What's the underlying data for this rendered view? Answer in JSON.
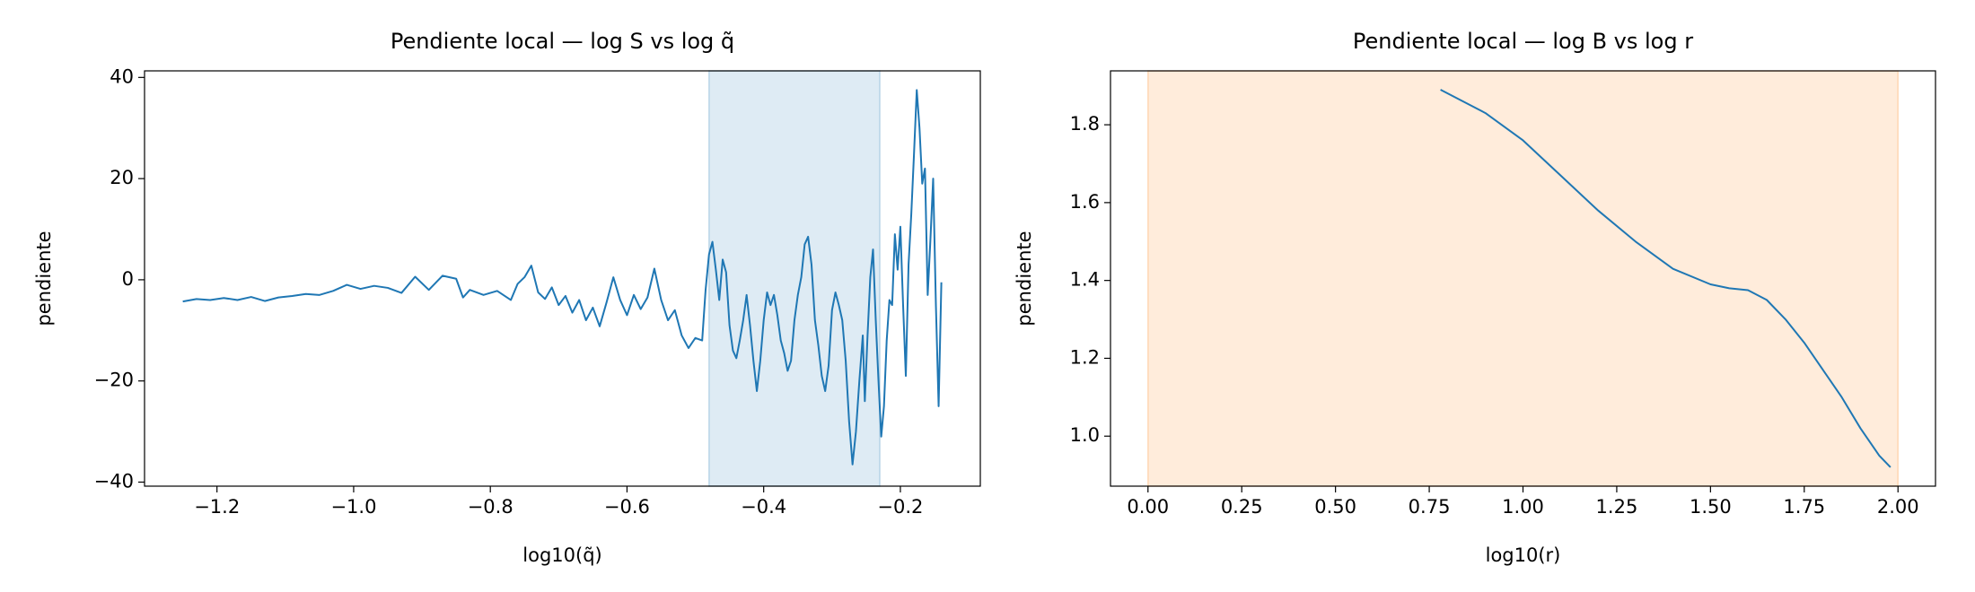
{
  "chart_data": [
    {
      "type": "line",
      "title": "Pendiente local — log S vs log q̃",
      "xlabel": "log10(q̃)",
      "ylabel": "pendiente",
      "xlim": [
        -1.306,
        -0.083
      ],
      "ylim": [
        -40.8,
        41.3
      ],
      "xticks": [
        {
          "value": -1.2,
          "label": "−1.2"
        },
        {
          "value": -1.0,
          "label": "−1.0"
        },
        {
          "value": -0.8,
          "label": "−0.8"
        },
        {
          "value": -0.6,
          "label": "−0.6"
        },
        {
          "value": -0.4,
          "label": "−0.4"
        },
        {
          "value": -0.2,
          "label": "−0.2"
        }
      ],
      "yticks": [
        {
          "value": -40,
          "label": "−40"
        },
        {
          "value": -20,
          "label": "−20"
        },
        0,
        20,
        40
      ],
      "span": [
        -0.48,
        -0.23
      ],
      "span_color": "#1f77b4",
      "series": [
        {
          "color": "#1f77b4",
          "x": [
            -1.25,
            -1.23,
            -1.21,
            -1.19,
            -1.17,
            -1.15,
            -1.13,
            -1.11,
            -1.09,
            -1.07,
            -1.05,
            -1.03,
            -1.01,
            -0.99,
            -0.97,
            -0.95,
            -0.93,
            -0.91,
            -0.89,
            -0.87,
            -0.85,
            -0.84,
            -0.83,
            -0.81,
            -0.79,
            -0.77,
            -0.76,
            -0.75,
            -0.74,
            -0.73,
            -0.72,
            -0.71,
            -0.7,
            -0.69,
            -0.68,
            -0.67,
            -0.66,
            -0.65,
            -0.64,
            -0.63,
            -0.62,
            -0.61,
            -0.6,
            -0.59,
            -0.58,
            -0.57,
            -0.56,
            -0.55,
            -0.54,
            -0.53,
            -0.52,
            -0.51,
            -0.5,
            -0.49,
            -0.485,
            -0.48,
            -0.475,
            -0.47,
            -0.465,
            -0.46,
            -0.455,
            -0.45,
            -0.445,
            -0.44,
            -0.435,
            -0.43,
            -0.425,
            -0.42,
            -0.415,
            -0.41,
            -0.405,
            -0.4,
            -0.395,
            -0.39,
            -0.385,
            -0.38,
            -0.375,
            -0.37,
            -0.365,
            -0.36,
            -0.355,
            -0.35,
            -0.345,
            -0.34,
            -0.335,
            -0.33,
            -0.325,
            -0.32,
            -0.315,
            -0.31,
            -0.305,
            -0.3,
            -0.295,
            -0.29,
            -0.285,
            -0.28,
            -0.275,
            -0.27,
            -0.265,
            -0.26,
            -0.255,
            -0.252,
            -0.248,
            -0.244,
            -0.24,
            -0.236,
            -0.232,
            -0.228,
            -0.224,
            -0.22,
            -0.216,
            -0.212,
            -0.208,
            -0.204,
            -0.2,
            -0.196,
            -0.192,
            -0.188,
            -0.184,
            -0.18,
            -0.176,
            -0.172,
            -0.168,
            -0.164,
            -0.16,
            -0.156,
            -0.152,
            -0.148,
            -0.144,
            -0.14
          ],
          "values": [
            -4.3,
            -3.8,
            -4.0,
            -3.6,
            -4.0,
            -3.4,
            -4.2,
            -3.5,
            -3.2,
            -2.8,
            -3.0,
            -2.2,
            -1.0,
            -1.8,
            -1.2,
            -1.6,
            -2.6,
            0.6,
            -2.0,
            0.8,
            0.2,
            -3.5,
            -2.0,
            -3.0,
            -2.2,
            -4.0,
            -0.8,
            0.5,
            2.8,
            -2.5,
            -3.8,
            -1.5,
            -5.0,
            -3.2,
            -6.5,
            -4.0,
            -8.0,
            -5.5,
            -9.2,
            -4.5,
            0.5,
            -4.0,
            -7.0,
            -3.0,
            -5.8,
            -3.5,
            2.2,
            -4.0,
            -8.0,
            -6.0,
            -11.0,
            -13.5,
            -11.5,
            -12.0,
            -2.0,
            5.0,
            7.5,
            2.0,
            -4.0,
            4.0,
            1.5,
            -9.0,
            -14.0,
            -15.5,
            -12.0,
            -8.0,
            -3.0,
            -9.0,
            -16.0,
            -22.0,
            -16.0,
            -8.0,
            -2.5,
            -5.0,
            -3.0,
            -7.0,
            -12.0,
            -14.5,
            -18.0,
            -16.0,
            -8.0,
            -3.0,
            0.5,
            7.0,
            8.5,
            3.0,
            -8.0,
            -13.0,
            -19.0,
            -22.0,
            -17.0,
            -6.0,
            -2.5,
            -5.0,
            -8.0,
            -16.0,
            -28.0,
            -36.5,
            -30.0,
            -20.0,
            -11.0,
            -24.0,
            -11.0,
            0.5,
            6.0,
            -8.0,
            -20.0,
            -31.0,
            -25.0,
            -12.0,
            -4.0,
            -5.0,
            9.0,
            2.0,
            10.5,
            -5.0,
            -19.0,
            3.0,
            13.0,
            25.0,
            37.5,
            30.0,
            19.0,
            22.0,
            -3.0,
            8.0,
            20.0,
            -5.0,
            -25.0,
            -0.5
          ]
        }
      ]
    },
    {
      "type": "line",
      "title": "Pendiente local — log B vs log r",
      "xlabel": "log10(r)",
      "ylabel": "pendiente",
      "xlim": [
        -0.1,
        2.1
      ],
      "ylim": [
        0.8715,
        1.9385
      ],
      "xticks": [
        {
          "value": 0,
          "label": "0.00"
        },
        {
          "value": 0.25,
          "label": "0.25"
        },
        {
          "value": 0.5,
          "label": "0.50"
        },
        {
          "value": 0.75,
          "label": "0.75"
        },
        {
          "value": 1.0,
          "label": "1.00"
        },
        {
          "value": 1.25,
          "label": "1.25"
        },
        {
          "value": 1.5,
          "label": "1.50"
        },
        {
          "value": 1.75,
          "label": "1.75"
        },
        {
          "value": 2.0,
          "label": "2.00"
        }
      ],
      "yticks": [
        {
          "value": 1.0,
          "label": "1.0"
        },
        1.2,
        1.4,
        1.6,
        1.8
      ],
      "span": [
        0,
        2
      ],
      "span_color": "#ff7f0e",
      "series": [
        {
          "color": "#1f77b4",
          "x": [
            0.78,
            0.9,
            1.0,
            1.1,
            1.2,
            1.3,
            1.4,
            1.5,
            1.55,
            1.6,
            1.65,
            1.7,
            1.75,
            1.8,
            1.85,
            1.9,
            1.95,
            1.98
          ],
          "values": [
            1.89,
            1.83,
            1.76,
            1.67,
            1.58,
            1.5,
            1.43,
            1.39,
            1.38,
            1.375,
            1.35,
            1.3,
            1.24,
            1.17,
            1.1,
            1.02,
            0.95,
            0.92
          ]
        }
      ]
    }
  ]
}
